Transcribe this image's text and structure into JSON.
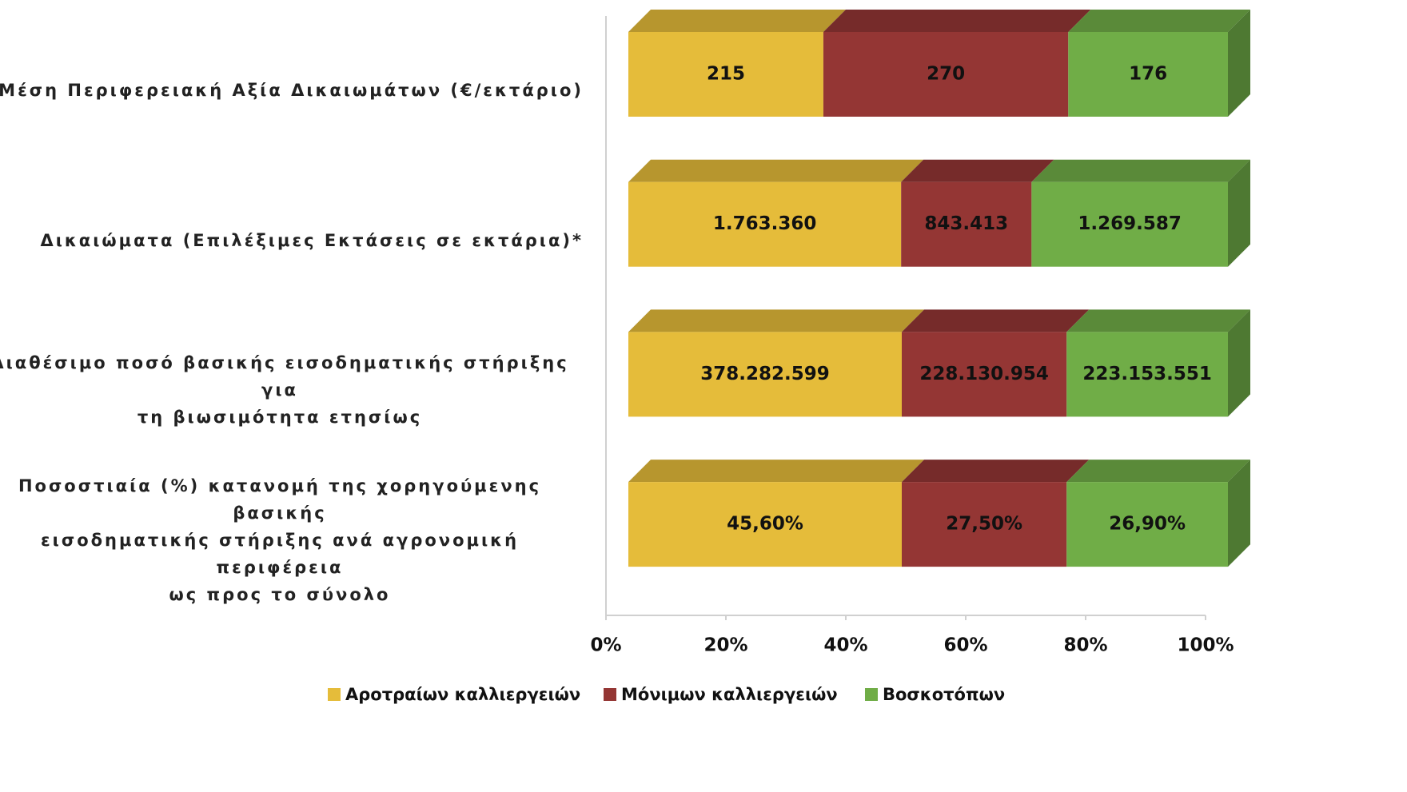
{
  "chart_data": {
    "type": "bar",
    "orientation": "horizontal",
    "stacking": "percent",
    "three_d": true,
    "categories": [
      "Μέση Περιφερειακή Αξία Δικαιωμάτων (€/εκτάριο)",
      "Δικαιώματα (Επιλέξιμες Εκτάσεις σε εκτάρια)*",
      "Διαθέσιμο ποσό βασικής εισοδηματικής στήριξης για\nτη βιωσιμότητα ετησίως",
      "Ποσοστιαία (%) κατανομή της χορηγούμενης βασικής\nεισοδηματικής στήριξης ανά αγρονομική περιφέρεια\nως προς το σύνολο"
    ],
    "series": [
      {
        "name": "Αροτραίων καλλιεργειών",
        "color": "#E5BC3A",
        "values": [
          215,
          1763360,
          378282599,
          45.6
        ],
        "value_labels": [
          "215",
          "1.763.360",
          "378.282.599",
          "45,60%"
        ]
      },
      {
        "name": "Μόνιμων καλλιεργειών",
        "color": "#943634",
        "values": [
          270,
          843413,
          228130954,
          27.5
        ],
        "value_labels": [
          "270",
          "843.413",
          "228.130.954",
          "27,50%"
        ]
      },
      {
        "name": "Βοσκοτόπων",
        "color": "#70AD47",
        "values": [
          176,
          1269587,
          223153551,
          26.9
        ],
        "value_labels": [
          "176",
          "1.269.587",
          "223.153.551",
          "26,90%"
        ]
      }
    ],
    "xlim": [
      0,
      100
    ],
    "xticks": [
      {
        "value": 0,
        "label": "0%"
      },
      {
        "value": 20,
        "label": "20%"
      },
      {
        "value": 40,
        "label": "40%"
      },
      {
        "value": 60,
        "label": "60%"
      },
      {
        "value": 80,
        "label": "80%"
      },
      {
        "value": 100,
        "label": "100%"
      }
    ],
    "legend": "bottom"
  }
}
